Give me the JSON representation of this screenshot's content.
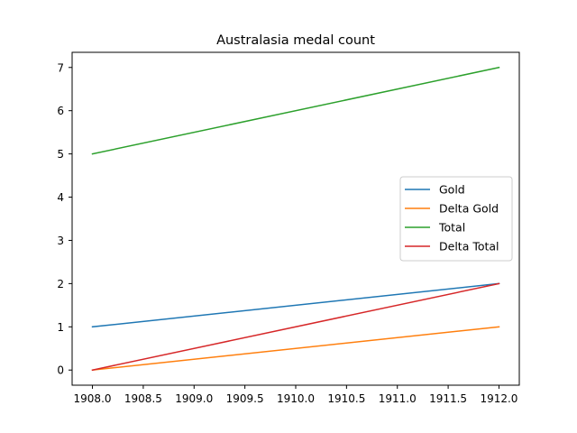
{
  "chart_data": {
    "type": "line",
    "title": "Australasia medal count",
    "xlabel": "",
    "ylabel": "",
    "x": [
      1908,
      1912
    ],
    "xlim": [
      1907.8,
      1912.2
    ],
    "ylim": [
      -0.35,
      7.35
    ],
    "x_ticks": [
      1908.0,
      1908.5,
      1909.0,
      1909.5,
      1910.0,
      1910.5,
      1911.0,
      1911.5,
      1912.0
    ],
    "x_tick_labels": [
      "1908.0",
      "1908.5",
      "1909.0",
      "1909.5",
      "1910.0",
      "1910.5",
      "1911.0",
      "1911.5",
      "1912.0"
    ],
    "y_ticks": [
      0,
      1,
      2,
      3,
      4,
      5,
      6,
      7
    ],
    "y_tick_labels": [
      "0",
      "1",
      "2",
      "3",
      "4",
      "5",
      "6",
      "7"
    ],
    "grid": false,
    "legend_position": "center-right",
    "series": [
      {
        "name": "Gold",
        "values": [
          1,
          2
        ],
        "color": "#1f77b4"
      },
      {
        "name": "Delta Gold",
        "values": [
          0,
          1
        ],
        "color": "#ff7f0e"
      },
      {
        "name": "Total",
        "values": [
          5,
          7
        ],
        "color": "#2ca02c"
      },
      {
        "name": "Delta Total",
        "values": [
          0,
          2
        ],
        "color": "#d62728"
      }
    ]
  }
}
